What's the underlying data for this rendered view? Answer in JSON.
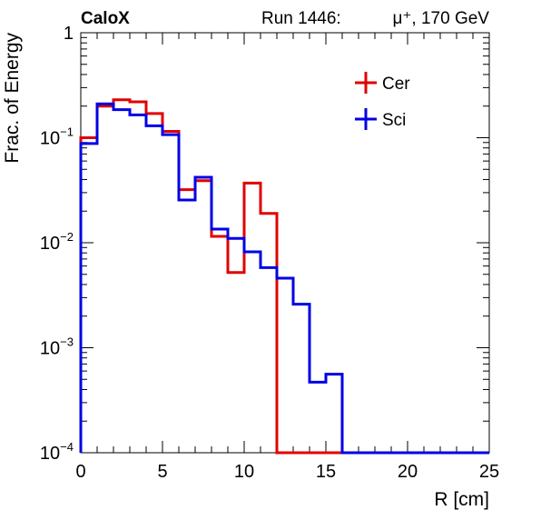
{
  "chart_data": {
    "type": "step-histogram",
    "experiment_label": "CaloX",
    "run_label": "Run 1446:",
    "beam_label": "μ⁺, 170 GeV",
    "xlabel": "R [cm]",
    "ylabel": "Frac. of Energy",
    "xlim": [
      0,
      25
    ],
    "ylim": [
      0.0001,
      1
    ],
    "yscale": "log",
    "grid": false,
    "legend_position": "top-right",
    "x_ticks": [
      {
        "value": 0,
        "label": "0"
      },
      {
        "value": 5,
        "label": "5"
      },
      {
        "value": 10,
        "label": "10"
      },
      {
        "value": 15,
        "label": "15"
      },
      {
        "value": 20,
        "label": "20"
      },
      {
        "value": 25,
        "label": "25"
      }
    ],
    "y_ticks": [
      {
        "exp": 0,
        "base": "1",
        "sup": ""
      },
      {
        "exp": -1,
        "base": "10",
        "sup": "−1"
      },
      {
        "exp": -2,
        "base": "10",
        "sup": "−2"
      },
      {
        "exp": -3,
        "base": "10",
        "sup": "−3"
      },
      {
        "exp": -4,
        "base": "10",
        "sup": "−4"
      }
    ],
    "bin_edges": [
      0,
      1,
      2,
      3,
      4,
      5,
      6,
      7,
      8,
      9,
      10,
      11,
      12,
      13,
      14,
      15,
      16,
      17,
      18,
      19,
      20,
      21,
      22,
      23,
      24,
      25
    ],
    "series": [
      {
        "name": "Cer",
        "color": "#e00000",
        "values": [
          0.1,
          0.2,
          0.23,
          0.22,
          0.17,
          0.115,
          0.032,
          0.039,
          0.0115,
          0.0052,
          0.037,
          0.019,
          0,
          0,
          0,
          0,
          0,
          0,
          0,
          0,
          0,
          0,
          0,
          0,
          0
        ]
      },
      {
        "name": "Sci",
        "color": "#0000e6",
        "values": [
          0.088,
          0.21,
          0.185,
          0.165,
          0.13,
          0.107,
          0.0255,
          0.042,
          0.0135,
          0.011,
          0.0082,
          0.0058,
          0.0046,
          0.0026,
          0.00047,
          0.00056,
          0,
          0,
          0,
          0,
          0,
          0,
          0,
          0,
          0
        ]
      }
    ]
  }
}
